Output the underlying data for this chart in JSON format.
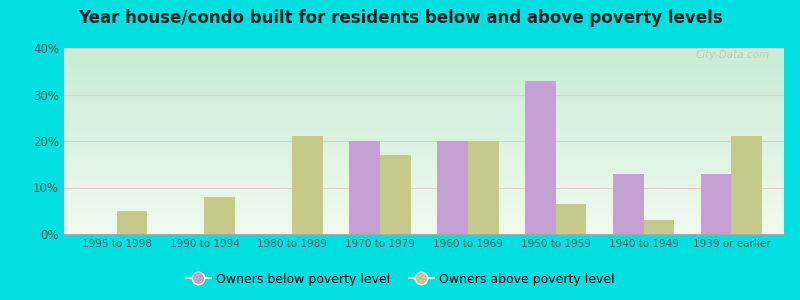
{
  "title": "Year house/condo built for residents below and above poverty levels",
  "categories": [
    "1995 to 1998",
    "1990 to 1994",
    "1980 to 1989",
    "1970 to 1979",
    "1960 to 1969",
    "1950 to 1959",
    "1940 to 1949",
    "1939 or earlier"
  ],
  "below_poverty": [
    0,
    0,
    0,
    20,
    20,
    33,
    13,
    13
  ],
  "above_poverty": [
    5,
    8,
    21,
    17,
    20,
    6.5,
    3,
    21
  ],
  "below_color": "#c4a0d4",
  "above_color": "#c5c98a",
  "ylim": [
    0,
    40
  ],
  "yticks": [
    0,
    10,
    20,
    30,
    40
  ],
  "bg_color_top": "#c8ecd4",
  "bg_color_bottom": "#f0faee",
  "outer_bg": "#00e0e0",
  "bar_width": 0.35,
  "legend_below_label": "Owners below poverty level",
  "legend_above_label": "Owners above poverty level",
  "watermark": "City-Data.com",
  "gridline_color": "#e8c8d0",
  "title_fontsize": 12,
  "tick_fontsize": 7.5
}
